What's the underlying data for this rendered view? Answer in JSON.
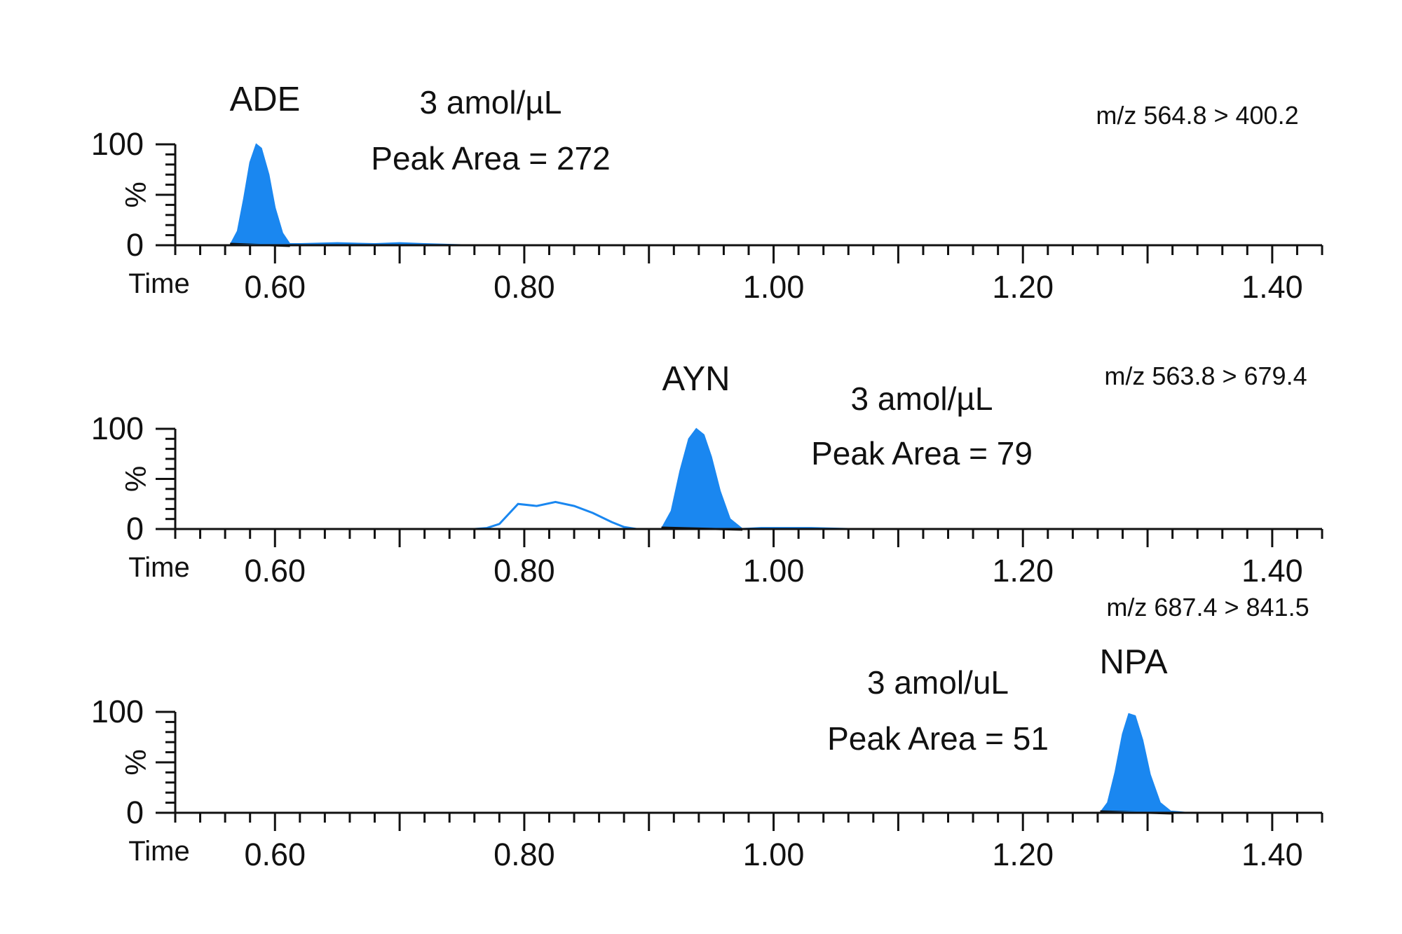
{
  "chart_data": [
    {
      "type": "line",
      "peak_label": "ADE",
      "concentration_label": "3 amol/µL",
      "peak_area_label": "Peak Area = 272",
      "transition_label": "m/z 564.8 > 400.2",
      "xlabel": "Time",
      "ylabel": "%",
      "xlim": [
        0.52,
        1.44
      ],
      "ylim": [
        0,
        100
      ],
      "x_tick_labels": [
        "0.60",
        "0.80",
        "1.00",
        "1.20",
        "1.40"
      ],
      "x_ticks": [
        0.6,
        0.8,
        1.0,
        1.2,
        1.4
      ],
      "y_tick_labels": [
        "100",
        "0"
      ],
      "y_ticks": [
        100,
        0
      ],
      "fill_color": "#1a87f0",
      "line_color": "#1a87f0",
      "filled_peak": {
        "x": [
          0.564,
          0.57,
          0.575,
          0.58,
          0.585,
          0.589,
          0.595,
          0.6,
          0.606,
          0.612
        ],
        "y": [
          0,
          14,
          46,
          82,
          100,
          96,
          70,
          37,
          12,
          1
        ]
      },
      "trace": {
        "x": [
          0.52,
          0.564,
          0.612,
          0.62,
          0.65,
          0.68,
          0.7,
          0.72,
          0.75
        ],
        "y": [
          0,
          0,
          1,
          1,
          2,
          1,
          2,
          1,
          0
        ]
      }
    },
    {
      "type": "line",
      "peak_label": "AYN",
      "concentration_label": "3 amol/µL",
      "peak_area_label": "Peak Area = 79",
      "transition_label": "m/z 563.8 > 679.4",
      "xlabel": "Time",
      "ylabel": "%",
      "xlim": [
        0.52,
        1.44
      ],
      "ylim": [
        0,
        100
      ],
      "x_tick_labels": [
        "0.60",
        "0.80",
        "1.00",
        "1.20",
        "1.40"
      ],
      "x_ticks": [
        0.6,
        0.8,
        1.0,
        1.2,
        1.4
      ],
      "y_tick_labels": [
        "100",
        "0"
      ],
      "y_ticks": [
        100,
        0
      ],
      "fill_color": "#1a87f0",
      "line_color": "#1a87f0",
      "filled_peak": {
        "x": [
          0.91,
          0.918,
          0.925,
          0.932,
          0.938,
          0.944,
          0.95,
          0.957,
          0.965,
          0.975
        ],
        "y": [
          0,
          18,
          58,
          90,
          100,
          94,
          72,
          38,
          10,
          0
        ]
      },
      "trace": {
        "x": [
          0.76,
          0.77,
          0.78,
          0.795,
          0.81,
          0.825,
          0.84,
          0.855,
          0.87,
          0.88,
          0.89,
          0.91,
          0.975,
          0.99,
          1.03,
          1.06,
          1.1
        ],
        "y": [
          0,
          1,
          5,
          25,
          23,
          27,
          23,
          16,
          7,
          2,
          0,
          0,
          0,
          1,
          1,
          0,
          0
        ]
      }
    },
    {
      "type": "line",
      "peak_label": "NPA",
      "concentration_label": "3 amol/uL",
      "peak_area_label": "Peak Area = 51",
      "transition_label": "m/z 687.4 > 841.5",
      "xlabel": "Time",
      "ylabel": "%",
      "xlim": [
        0.52,
        1.44
      ],
      "ylim": [
        0,
        100
      ],
      "x_tick_labels": [
        "0.60",
        "0.80",
        "1.00",
        "1.20",
        "1.40"
      ],
      "x_ticks": [
        0.6,
        0.8,
        1.0,
        1.2,
        1.4
      ],
      "y_tick_labels": [
        "100",
        "0"
      ],
      "y_ticks": [
        100,
        0
      ],
      "fill_color": "#1a87f0",
      "line_color": "#1a87f0",
      "filled_peak": {
        "x": [
          1.262,
          1.268,
          1.274,
          1.28,
          1.285,
          1.29,
          1.296,
          1.302,
          1.31,
          1.32
        ],
        "y": [
          0,
          10,
          40,
          78,
          98,
          96,
          72,
          38,
          10,
          0
        ]
      },
      "trace": {
        "x": [
          1.1,
          1.262,
          1.32,
          1.33,
          1.44
        ],
        "y": [
          0,
          0,
          1,
          0,
          0
        ]
      }
    }
  ]
}
